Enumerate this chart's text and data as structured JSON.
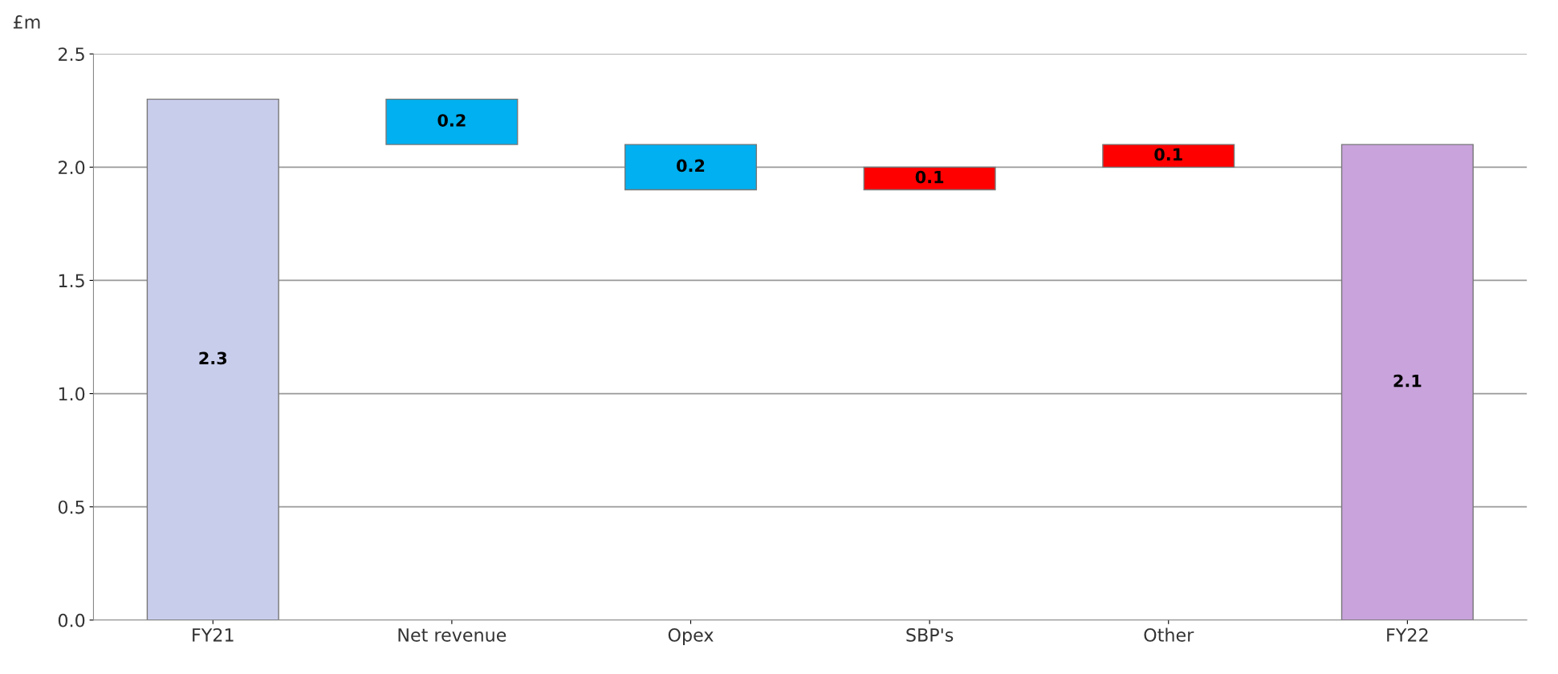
{
  "chart_data": {
    "type": "bar",
    "ylabel": "£m",
    "categories": [
      "FY21",
      "Net revenue",
      "Opex",
      "SBP's",
      "Other",
      "FY22"
    ],
    "values": [
      2.3,
      0.2,
      0.2,
      0.1,
      0.1,
      2.1
    ],
    "base": [
      0,
      2.1,
      1.9,
      1.9,
      2.0,
      0
    ],
    "colors": [
      "#c9cdec",
      "#00b0f0",
      "#00b0f0",
      "#ff0000",
      "#ff0000",
      "#c9a3dc"
    ],
    "ylim": [
      0,
      2.5
    ],
    "yticks": [
      {
        "value": 0,
        "label": "0.0"
      },
      {
        "value": 0.5,
        "label": "0.5"
      },
      {
        "value": 1,
        "label": "1.0"
      },
      {
        "value": 1.5,
        "label": "1.5"
      },
      {
        "value": 2,
        "label": "2.0"
      },
      {
        "value": 2.5,
        "label": "2.5"
      }
    ],
    "data_labels": true,
    "grid": "y"
  }
}
